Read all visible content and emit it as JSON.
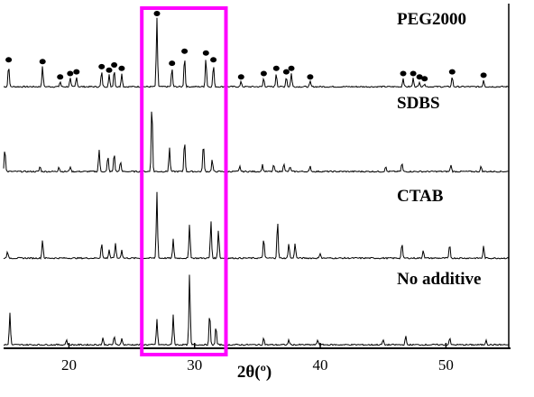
{
  "chart_data": {
    "type": "line",
    "xlabel": "2θ(º)",
    "ylabel": "",
    "xlim": [
      14.8,
      55.0
    ],
    "xticks": [
      20,
      30,
      40,
      50
    ],
    "grid": false,
    "series": [
      {
        "name": "PEG2000",
        "peaks": [
          [
            15.2,
            26
          ],
          [
            17.9,
            24
          ],
          [
            19.3,
            6
          ],
          [
            20.1,
            10
          ],
          [
            20.6,
            12
          ],
          [
            22.6,
            18
          ],
          [
            23.2,
            14
          ],
          [
            23.6,
            20
          ],
          [
            24.2,
            16
          ],
          [
            27.0,
            80
          ],
          [
            28.2,
            22
          ],
          [
            29.2,
            36
          ],
          [
            30.9,
            34
          ],
          [
            31.5,
            26
          ],
          [
            33.7,
            6
          ],
          [
            35.5,
            10
          ],
          [
            36.5,
            16
          ],
          [
            37.3,
            12
          ],
          [
            37.7,
            16
          ],
          [
            39.2,
            6
          ],
          [
            46.6,
            10
          ],
          [
            47.4,
            10
          ],
          [
            47.9,
            6
          ],
          [
            48.3,
            4
          ],
          [
            50.5,
            12
          ],
          [
            53.0,
            8
          ]
        ],
        "markers": [
          15.2,
          17.9,
          19.3,
          20.1,
          20.6,
          22.6,
          23.2,
          23.6,
          24.2,
          27.0,
          28.2,
          29.2,
          30.9,
          31.5,
          33.7,
          35.5,
          36.5,
          37.3,
          37.7,
          39.2,
          46.6,
          47.4,
          47.9,
          48.3,
          50.5,
          53.0
        ]
      },
      {
        "name": "SDBS",
        "peaks": [
          [
            14.9,
            28
          ],
          [
            17.7,
            6
          ],
          [
            19.2,
            6
          ],
          [
            20.1,
            6
          ],
          [
            22.4,
            26
          ],
          [
            23.1,
            18
          ],
          [
            23.6,
            22
          ],
          [
            24.1,
            12
          ],
          [
            26.6,
            82
          ],
          [
            28.0,
            28
          ],
          [
            29.2,
            38
          ],
          [
            30.7,
            34
          ],
          [
            31.4,
            14
          ],
          [
            33.6,
            6
          ],
          [
            35.4,
            8
          ],
          [
            36.3,
            8
          ],
          [
            37.1,
            10
          ],
          [
            37.6,
            6
          ],
          [
            39.2,
            6
          ],
          [
            45.2,
            6
          ],
          [
            46.5,
            10
          ],
          [
            50.4,
            8
          ],
          [
            52.8,
            6
          ]
        ],
        "markers": []
      },
      {
        "name": "CTAB",
        "peaks": [
          [
            15.1,
            8
          ],
          [
            17.9,
            22
          ],
          [
            22.6,
            18
          ],
          [
            23.2,
            10
          ],
          [
            23.7,
            18
          ],
          [
            24.2,
            10
          ],
          [
            27.0,
            78
          ],
          [
            28.3,
            22
          ],
          [
            29.6,
            40
          ],
          [
            31.3,
            44
          ],
          [
            31.9,
            34
          ],
          [
            35.5,
            24
          ],
          [
            36.6,
            44
          ],
          [
            37.5,
            18
          ],
          [
            38.0,
            18
          ],
          [
            40.0,
            6
          ],
          [
            46.5,
            18
          ],
          [
            48.2,
            10
          ],
          [
            50.3,
            16
          ],
          [
            53.0,
            14
          ]
        ],
        "markers": []
      },
      {
        "name": "No additive",
        "peaks": [
          [
            15.3,
            38
          ],
          [
            19.8,
            6
          ],
          [
            22.7,
            8
          ],
          [
            23.6,
            10
          ],
          [
            24.2,
            8
          ],
          [
            25.8,
            6
          ],
          [
            27.0,
            30
          ],
          [
            28.3,
            36
          ],
          [
            29.6,
            84
          ],
          [
            31.2,
            38
          ],
          [
            31.7,
            22
          ],
          [
            35.5,
            8
          ],
          [
            37.5,
            6
          ],
          [
            39.8,
            6
          ],
          [
            45.0,
            6
          ],
          [
            46.8,
            10
          ],
          [
            50.3,
            8
          ],
          [
            53.2,
            6
          ]
        ],
        "markers": []
      }
    ],
    "highlight": {
      "x_from": 25.8,
      "x_to": 32.5,
      "color": "#ff00ff"
    }
  }
}
